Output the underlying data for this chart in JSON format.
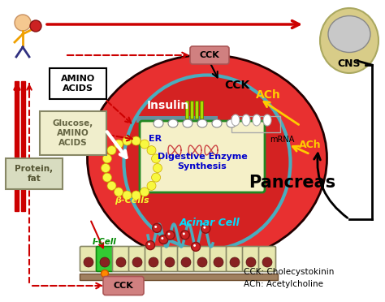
{
  "fig_width": 4.74,
  "fig_height": 3.72,
  "bg_color": "#ffffff",
  "pancreas_color": "#e83030",
  "pancreas_outline": "#8B0000",
  "er_fill": "#f5f0c8",
  "er_outline": "#2d7a3a",
  "beta_cells_color": "#f8f840",
  "labels": {
    "pancreas": "Pancreas",
    "acinar": "Acinar Cell",
    "er": "ER",
    "digestive": "Digestive Enzyme\nSynthesis",
    "beta": "β-Cells",
    "insulin": "Insulin",
    "mrna": "mRNA",
    "cck_top": "CCK",
    "ach_top": "ACh",
    "ach_side": "ACh",
    "cns": "CNS",
    "amino_acids": "AMINO\nACIDS",
    "glucose_amino": "Glucose,\nAMINO\nACIDS",
    "protein_fat": "Protein,\nfat",
    "i_cell": "I-Cell",
    "cck_bottom": "CCK",
    "cck_legend": "CCK: Cholecystokinin",
    "ach_legend": "ACh: Acetylcholine"
  },
  "colors": {
    "pancreas_text": "#000000",
    "acinar_text": "#00ddff",
    "er_text": "#0000cc",
    "beta_text": "#f8f830",
    "insulin_text": "#ffffff",
    "mrna_text": "#000000",
    "cck_text": "#000000",
    "ach_text": "#ffcc00",
    "cns_text": "#000000",
    "amino_text": "#000000",
    "label_text": "#000000",
    "red_arrow": "#cc0000",
    "black_arrow": "#000000",
    "yellow_arrow": "#ffcc00",
    "white_arrow": "#ffffff",
    "teal_outline": "#4aadbe",
    "icell_green": "#22bb22",
    "cck_fc": "#d08080",
    "cck_ec": "#aa5555"
  }
}
